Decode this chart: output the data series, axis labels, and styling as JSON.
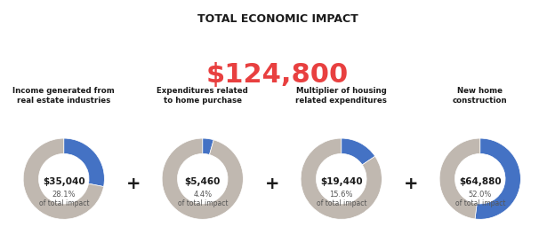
{
  "title": "TOTAL ECONOMIC IMPACT",
  "total_value": "$124,800",
  "total_color": "#e84040",
  "background_color": "#ffffff",
  "title_color": "#1a1a1a",
  "blue_color": "#4472c4",
  "gray_color": "#c0b8b0",
  "charts": [
    {
      "label": "Income generated from\nreal estate industries",
      "value": "$35,040",
      "percent": "28.1%",
      "sub": "of total impact",
      "pct_val": 28.1
    },
    {
      "label": "Expenditures related\nto home purchase",
      "value": "$5,460",
      "percent": "4.4%",
      "sub": "of total impact",
      "pct_val": 4.4
    },
    {
      "label": "Multiplier of housing\nrelated expenditures",
      "value": "$19,440",
      "percent": "15.6%",
      "sub": "of total impact",
      "pct_val": 15.6
    },
    {
      "label": "New home\nconstruction",
      "value": "$64,880",
      "percent": "52.0%",
      "sub": "of total impact",
      "pct_val": 52.0
    }
  ]
}
